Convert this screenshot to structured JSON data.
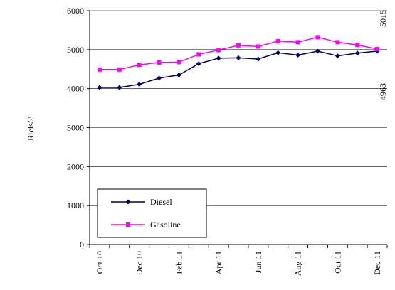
{
  "chart_data": {
    "type": "line",
    "ylabel": "Riels/ℓ",
    "xlabel": "",
    "ylim": [
      0,
      6000
    ],
    "yticks": [
      0,
      1000,
      2000,
      3000,
      4000,
      5000,
      6000
    ],
    "grid": true,
    "legend_position": "bottom-left",
    "x_labels": [
      "Oct 10",
      "Dec 10",
      "Feb 11",
      "Apr 11",
      "Jun 11",
      "Aug 11",
      "Oct 11",
      "Dec 11"
    ],
    "series": [
      {
        "name": "Diesel",
        "color": "#000066",
        "marker": "diamond",
        "values": [
          4030,
          4030,
          4110,
          4270,
          4350,
          4640,
          4780,
          4790,
          4760,
          4920,
          4860,
          4960,
          4840,
          4910,
          4963
        ],
        "end_label": "4963"
      },
      {
        "name": "Gasoline",
        "color": "#ff00ff",
        "marker": "square",
        "values": [
          4490,
          4490,
          4610,
          4670,
          4680,
          4880,
          4990,
          5110,
          5080,
          5220,
          5190,
          5320,
          5190,
          5120,
          5015
        ],
        "end_label": "5015"
      }
    ]
  }
}
